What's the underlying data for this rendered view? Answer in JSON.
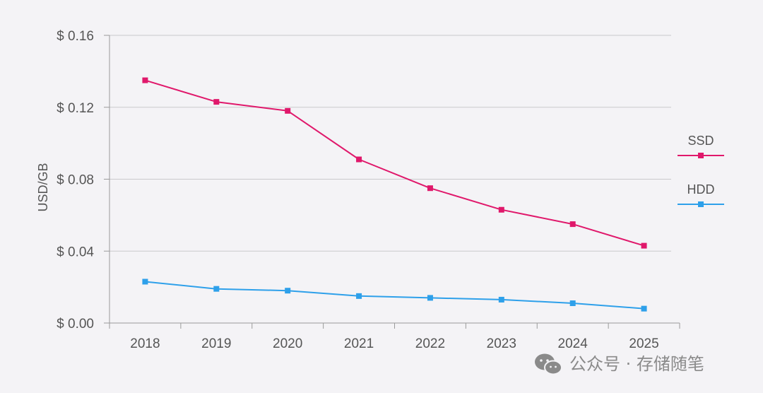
{
  "chart_data": {
    "type": "line",
    "categories": [
      "2018",
      "2019",
      "2020",
      "2021",
      "2022",
      "2023",
      "2024",
      "2025"
    ],
    "series": [
      {
        "name": "SSD",
        "color": "#e0186b",
        "values": [
          0.135,
          0.123,
          0.118,
          0.091,
          0.075,
          0.063,
          0.055,
          0.043
        ]
      },
      {
        "name": "HDD",
        "color": "#2ea0ea",
        "values": [
          0.023,
          0.019,
          0.018,
          0.015,
          0.014,
          0.013,
          0.011,
          0.008
        ]
      }
    ],
    "ylabel": "USD/GB",
    "ylim": [
      0,
      0.16
    ],
    "yticks": [
      {
        "value": 0.16,
        "label": "$ 0.16"
      },
      {
        "value": 0.12,
        "label": "$ 0.12"
      },
      {
        "value": 0.08,
        "label": "$ 0.08"
      },
      {
        "value": 0.04,
        "label": "$ 0.04"
      },
      {
        "value": 0,
        "label": "$ 0.00"
      }
    ],
    "grid": true,
    "legend_position": "right"
  },
  "watermark": {
    "text": "公众号 · 存储随笔",
    "icon": "wechat-icon"
  }
}
